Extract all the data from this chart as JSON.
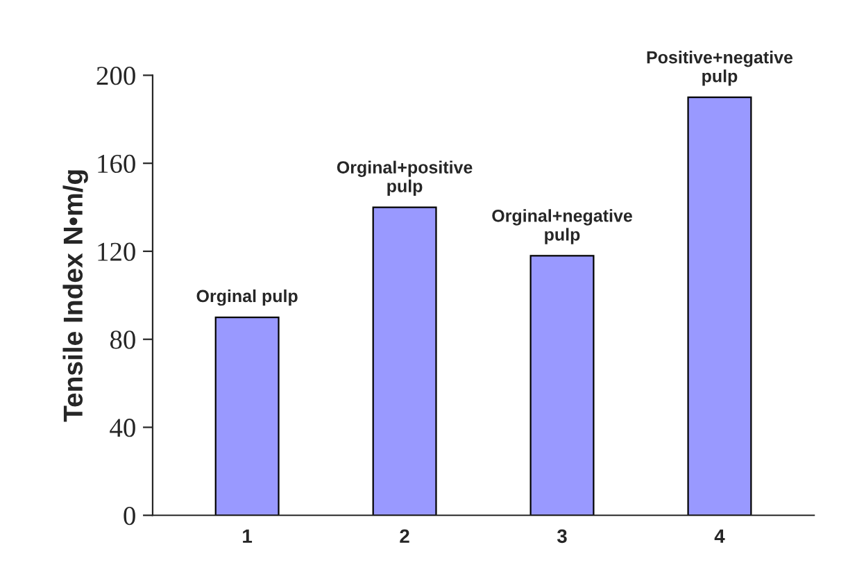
{
  "chart_data": {
    "type": "bar",
    "ylabel": "Tensile Index N•m/g",
    "categories": [
      "1",
      "2",
      "3",
      "4"
    ],
    "values": [
      90,
      140,
      118,
      190
    ],
    "color": "#9999ff",
    "ylim": [
      0,
      200
    ],
    "yticks": [
      0,
      40,
      80,
      120,
      160,
      200
    ],
    "grid": false,
    "annotations": [
      {
        "text": "Orginal pulp",
        "x": "1",
        "y": 90
      },
      {
        "text": "Orginal+positive\npulp",
        "x": "2",
        "y": 140
      },
      {
        "text": "Orginal+negative\npulp",
        "x": "3",
        "y": 118
      },
      {
        "text": "Positive+negative\npulp",
        "x": "4",
        "y": 190
      }
    ]
  }
}
